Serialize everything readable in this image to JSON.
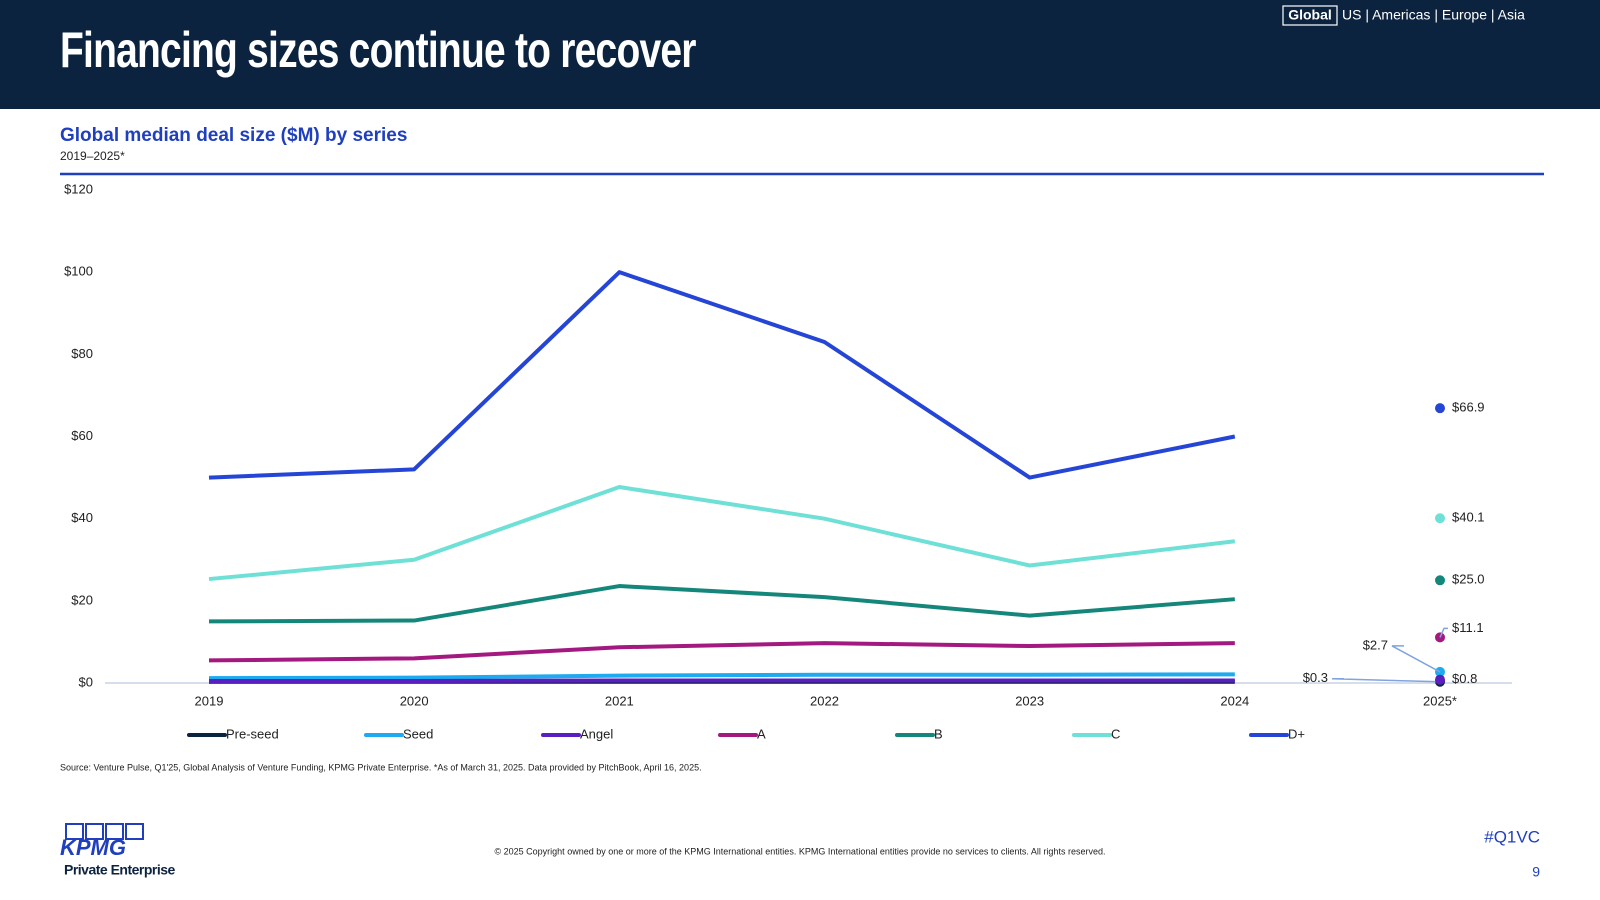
{
  "header": {
    "title": "Financing sizes continue to recover",
    "nav_active": "Global",
    "nav_rest": "US | Americas | Europe | Asia"
  },
  "chart_data": {
    "type": "line",
    "title": "Global median deal size ($M) by series",
    "subtitle": "2019–2025*",
    "categories": [
      "2019",
      "2020",
      "2021",
      "2022",
      "2023",
      "2024",
      "2025*"
    ],
    "ylim": [
      0,
      120
    ],
    "yticks": [
      {
        "value": 0,
        "label": "$0"
      },
      {
        "value": 20,
        "label": "$20"
      },
      {
        "value": 40,
        "label": "$40"
      },
      {
        "value": 60,
        "label": "$60"
      },
      {
        "value": 80,
        "label": "$80"
      },
      {
        "value": 100,
        "label": "$100"
      },
      {
        "value": 120,
        "label": "$120"
      }
    ],
    "legend": "bottom",
    "series": [
      {
        "name": "Pre-seed",
        "color": "#0c233f",
        "values": [
          0.3,
          0.3,
          0.3,
          0.3,
          0.3,
          0.3,
          0.3
        ],
        "value_labels": [
          null,
          null,
          null,
          null,
          null,
          null,
          "$0.3"
        ]
      },
      {
        "name": "Seed",
        "color": "#1eaaee",
        "values": [
          1.2,
          1.3,
          1.8,
          2,
          2,
          2.1,
          2.7
        ],
        "value_labels": [
          null,
          null,
          null,
          null,
          null,
          null,
          "$2.7"
        ]
      },
      {
        "name": "Angel",
        "color": "#5a1fc0",
        "values": [
          0.5,
          0.5,
          0.6,
          0.6,
          0.6,
          0.6,
          0.8
        ],
        "value_labels": [
          null,
          null,
          null,
          null,
          null,
          null,
          "$0.8"
        ]
      },
      {
        "name": "A",
        "color": "#a3197f",
        "values": [
          5.5,
          6,
          8.7,
          9.7,
          9,
          9.7,
          11.1
        ],
        "value_labels": [
          null,
          null,
          null,
          null,
          null,
          null,
          "$11.1"
        ]
      },
      {
        "name": "B",
        "color": "#15877a",
        "values": [
          15,
          15.2,
          23.6,
          20.9,
          16.4,
          20.4,
          25.0
        ],
        "value_labels": [
          null,
          null,
          null,
          null,
          null,
          null,
          "$25.0"
        ]
      },
      {
        "name": "C",
        "color": "#6ee0d6",
        "values": [
          25.3,
          30,
          47.7,
          40,
          28.6,
          34.5,
          40.1
        ],
        "value_labels": [
          null,
          null,
          null,
          null,
          null,
          null,
          "$40.1"
        ]
      },
      {
        "name": "D+",
        "color": "#2545d6",
        "values": [
          50,
          52,
          100,
          83,
          50,
          60,
          66.9
        ],
        "value_labels": [
          null,
          null,
          null,
          null,
          null,
          null,
          "$66.9"
        ]
      }
    ]
  },
  "footer": {
    "source": "Source: Venture Pulse, Q1'25, Global Analysis of Venture Funding, KPMG Private Enterprise. *As of March 31, 2025. Data provided by PitchBook, April 16, 2025.",
    "copyright": "© 2025 Copyright owned by one or more of the KPMG International entities. KPMG International entities provide no services to clients. All rights reserved.",
    "hashtag": "#Q1VC",
    "page": "9",
    "logo": "KPMG",
    "logo_sub": "Private Enterprise"
  }
}
